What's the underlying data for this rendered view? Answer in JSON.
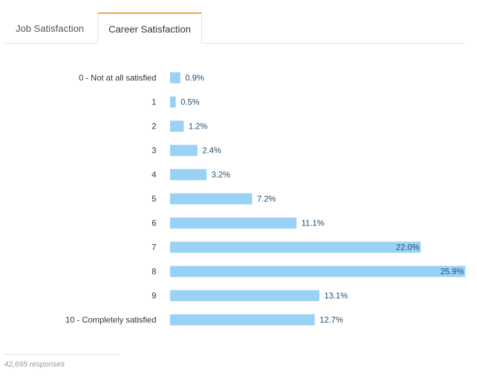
{
  "tabs": [
    {
      "label": "Job Satisfaction",
      "active": false
    },
    {
      "label": "Career Satisfaction",
      "active": true
    }
  ],
  "chart_data": {
    "type": "bar",
    "orientation": "horizontal",
    "categories": [
      "0 - Not at all satisfied",
      "1",
      "2",
      "3",
      "4",
      "5",
      "6",
      "7",
      "8",
      "9",
      "10 - Completely satisfied"
    ],
    "values": [
      0.9,
      0.5,
      1.2,
      2.4,
      3.2,
      7.2,
      11.1,
      22.0,
      25.9,
      13.1,
      12.7
    ],
    "labels": [
      "0.9%",
      "0.5%",
      "1.2%",
      "2.4%",
      "3.2%",
      "7.2%",
      "11.1%",
      "22.0%",
      "25.9%",
      "13.1%",
      "12.7%"
    ],
    "unit": "%",
    "xlim": [
      0,
      25.9
    ],
    "grid": false,
    "bar_color": "#99d2f5",
    "label_color": "#1f4e73"
  },
  "footer": {
    "responses": "42,695 responses"
  }
}
